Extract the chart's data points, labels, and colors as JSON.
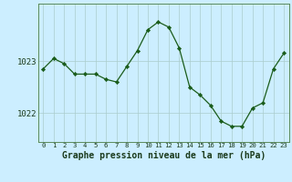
{
  "x": [
    0,
    1,
    2,
    3,
    4,
    5,
    6,
    7,
    8,
    9,
    10,
    11,
    12,
    13,
    14,
    15,
    16,
    17,
    18,
    19,
    20,
    21,
    22,
    23
  ],
  "y": [
    1022.85,
    1023.05,
    1022.95,
    1022.75,
    1022.75,
    1022.75,
    1022.65,
    1022.6,
    1022.9,
    1023.2,
    1023.6,
    1023.75,
    1023.65,
    1023.25,
    1022.5,
    1022.35,
    1022.15,
    1021.85,
    1021.75,
    1021.75,
    1022.1,
    1022.2,
    1022.85,
    1023.15
  ],
  "line_color": "#1a5c1a",
  "marker_color": "#1a5c1a",
  "background_color": "#cceeff",
  "grid_color": "#aacccc",
  "xlabel": "Graphe pression niveau de la mer (hPa)",
  "xlabel_fontsize": 7.0,
  "ytick_labels": [
    "1022",
    "1023"
  ],
  "ytick_values": [
    1022.0,
    1023.0
  ],
  "ylim": [
    1021.45,
    1024.1
  ],
  "xlim": [
    -0.5,
    23.5
  ],
  "border_color": "#5a8a5a",
  "xtick_fontsize": 5.2,
  "ytick_fontsize": 6.5
}
